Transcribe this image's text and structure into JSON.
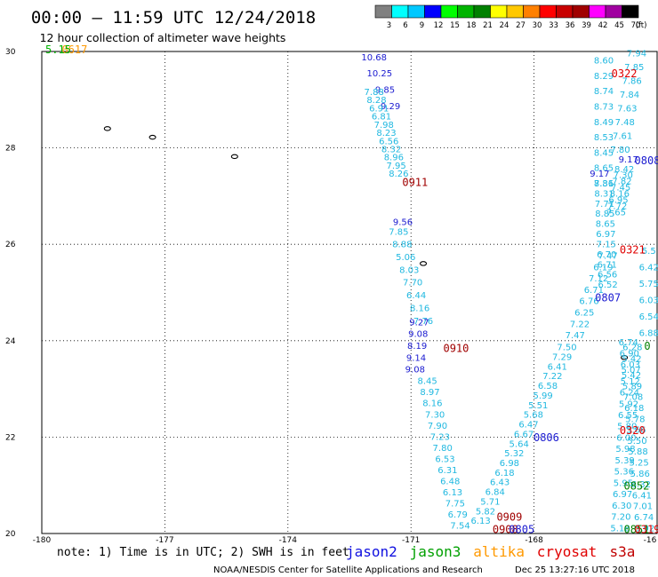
{
  "header": {
    "title": "00:00 – 11:59 UTC 12/24/2018",
    "subtitle": "12 hour collection of altimeter wave heights"
  },
  "legend": {
    "colors": [
      "#808080",
      "#00ffff",
      "#00c8ff",
      "#0000ff",
      "#00ff00",
      "#00b400",
      "#008000",
      "#ffff00",
      "#ffc800",
      "#ff8000",
      "#ff0000",
      "#c80000",
      "#a00000",
      "#ff00ff",
      "#a000a0",
      "#000000"
    ],
    "labels": [
      "3",
      "6",
      "9",
      "12",
      "15",
      "18",
      "21",
      "24",
      "27",
      "30",
      "33",
      "36",
      "39",
      "42",
      "45",
      "70",
      "(ft)"
    ]
  },
  "satellites": [
    {
      "name": "jason2",
      "color": "#1010e0"
    },
    {
      "name": "jason3",
      "color": "#00a000"
    },
    {
      "name": "altika",
      "color": "#ff9900"
    },
    {
      "name": "cryosat",
      "color": "#e00000"
    },
    {
      "name": "s3a",
      "color": "#c00000"
    }
  ],
  "footer": {
    "note": "note: 1) Time is in UTC; 2) SWH is in feet",
    "credit": "NOAA/NESDIS Center for Satellite Applications and Research",
    "generated": "Dec 25 13:27:16 UTC 2018"
  },
  "chart_data": {
    "type": "scatter",
    "xlabel": "",
    "ylabel": "",
    "xlim": [
      -180,
      -165
    ],
    "ylim": [
      20,
      30
    ],
    "grid": true,
    "x_ticks": [
      "-180",
      "-177",
      "-174",
      "-171",
      "-168",
      "-16"
    ],
    "y_ticks": [
      "30",
      "28",
      "26",
      "24",
      "22",
      "20"
    ],
    "tracks": [
      {
        "color": "#1a1ad0",
        "lon_start": -171.9,
        "lat_start": 29.82,
        "lon_end": -171.5,
        "lat_end": 28.8,
        "values": [
          "10.68",
          "10.25",
          "9.85",
          "9.29"
        ]
      },
      {
        "color": "#20b8e0",
        "lon_start": -171.9,
        "lat_start": 29.1,
        "lon_end": -171.3,
        "lat_end": 27.4,
        "values": [
          "7.88",
          "8.28",
          "6.91",
          "6.81",
          "7.98",
          "8.23",
          "6.56",
          "8.32",
          "8.96",
          "7.95",
          "8.26"
        ]
      },
      {
        "color": "#1a1ad0",
        "lon_start": -171.2,
        "lat_start": 26.4,
        "lon_end": -171.2,
        "lat_end": 26.4,
        "values": [
          "9.56"
        ]
      },
      {
        "color": "#20b8e0",
        "lon_start": -171.3,
        "lat_start": 26.2,
        "lon_end": -170.7,
        "lat_end": 24.35,
        "values": [
          "7.85",
          "8.88",
          "5.06",
          "8.03",
          "7.70",
          "6.44",
          "8.16",
          "7.76"
        ]
      },
      {
        "color": "#1a1ad0",
        "lon_start": -170.8,
        "lat_start": 24.32,
        "lon_end": -170.9,
        "lat_end": 23.34,
        "values": [
          "9.27",
          "9.08",
          "8.19",
          "9.14",
          "9.08"
        ]
      },
      {
        "color": "#20b8e0",
        "lon_start": -170.6,
        "lat_start": 23.1,
        "lon_end": -169.8,
        "lat_end": 20.1,
        "values": [
          "8.45",
          "8.97",
          "8.16",
          "7.30",
          "7.90",
          "7.23",
          "7.80",
          "6.53",
          "6.31",
          "6.48",
          "6.13",
          "7.75",
          "6.79",
          "7.54"
        ]
      },
      {
        "color": "#20b8e0",
        "lon_start": -169.3,
        "lat_start": 20.2,
        "lon_end": -167.2,
        "lat_end": 23.8,
        "values": [
          "6.13",
          "5.82",
          "5.71",
          "6.84",
          "6.43",
          "6.18",
          "6.98",
          "5.32",
          "5.64",
          "6.67",
          "6.47",
          "5.68",
          "5.51",
          "5.99",
          "6.58",
          "7.22",
          "6.41",
          "7.29",
          "7.50"
        ]
      },
      {
        "color": "#20b8e0",
        "lon_start": -167.0,
        "lat_start": 24.05,
        "lon_end": -166.2,
        "lat_end": 25.7,
        "values": [
          "7.47",
          "7.22",
          "6.25",
          "6.76",
          "6.71",
          "7.12",
          "6.19",
          "7.47"
        ]
      },
      {
        "color": "#20b8e0",
        "lon_start": -166.3,
        "lat_start": 29.75,
        "lon_end": -166.3,
        "lat_end": 27.2,
        "values": [
          "8.60",
          "8.29",
          "8.74",
          "8.73",
          "8.49",
          "8.53",
          "8.45",
          "8.65",
          "7.81"
        ]
      },
      {
        "color": "#1a1ad0",
        "lon_start": -166.4,
        "lat_start": 27.4,
        "lon_end": -166.4,
        "lat_end": 27.4,
        "values": [
          "9.17"
        ]
      },
      {
        "color": "#20b8e0",
        "lon_start": -166.3,
        "lat_start": 27.2,
        "lon_end": -166.2,
        "lat_end": 25.1,
        "values": [
          "8.36",
          "8.31",
          "7.71",
          "8.85",
          "8.65",
          "6.97",
          "7.15",
          "6.70",
          "6.71",
          "6.56",
          "6.52"
        ]
      },
      {
        "color": "#20b8e0",
        "lon_start": -165.7,
        "lat_start": 23.9,
        "lon_end": -165.3,
        "lat_end": 20.05,
        "values": [
          "6.74",
          "6.90",
          "6.03",
          "5.42",
          "5.89",
          "7.08",
          "6.18",
          "5.78",
          "5.66",
          "5.50",
          "5.88",
          "5.25",
          "5.86",
          "6.32",
          "6.41",
          "7.01",
          "6.74",
          "5.92"
        ]
      },
      {
        "color": "#20b8e0",
        "lon_start": -165.5,
        "lat_start": 29.9,
        "lon_end": -165.9,
        "lat_end": 27.9,
        "values": [
          "7.94",
          "7.85",
          "7.86",
          "7.84",
          "7.63",
          "7.48",
          "7.61",
          "7.80"
        ]
      },
      {
        "color": "#1a1ad0",
        "lon_start": -165.7,
        "lat_start": 27.7,
        "lon_end": -165.7,
        "lat_end": 27.7,
        "values": [
          "9.17"
        ]
      },
      {
        "color": "#20b8e0",
        "lon_start": -165.8,
        "lat_start": 27.5,
        "lon_end": -166.0,
        "lat_end": 26.6,
        "values": [
          "8.42",
          "7.30",
          "7.82",
          "7.45",
          "8.16",
          "6.95",
          "7.72",
          "7.65"
        ]
      },
      {
        "color": "#20b8e0",
        "lon_start": -165.6,
        "lat_start": 23.8,
        "lon_end": -165.9,
        "lat_end": 20.05,
        "values": [
          "6.28",
          "5.42",
          "5.07",
          "5.12",
          "6.24",
          "5.92",
          "6.55",
          "5.80",
          "6.00",
          "5.98",
          "5.39",
          "5.36",
          "5.95",
          "6.97",
          "6.30",
          "7.20",
          "5.18"
        ]
      },
      {
        "color": "#20b8e0",
        "lon_start": -165.2,
        "lat_start": 25.8,
        "lon_end": -165.2,
        "lat_end": 24.1,
        "values": [
          "5.5",
          "6.42",
          "5.75",
          "6.03",
          "6.54",
          "6.88"
        ]
      }
    ],
    "pass_labels": [
      {
        "text": "0617",
        "lon": -179.2,
        "lat": 30.0,
        "color": "#ff9900"
      },
      {
        "text": "5.15",
        "lon": -179.6,
        "lat": 30.0,
        "color": "#00b400"
      },
      {
        "text": "0322",
        "lon": -165.8,
        "lat": 29.5,
        "color": "#e00000"
      },
      {
        "text": "0911",
        "lon": -170.9,
        "lat": 27.25,
        "color": "#a00000"
      },
      {
        "text": "0808",
        "lon": -165.2,
        "lat": 27.7,
        "color": "#1a1ad0"
      },
      {
        "text": "0321",
        "lon": -165.6,
        "lat": 25.85,
        "color": "#e00000"
      },
      {
        "text": "0807",
        "lon": -166.2,
        "lat": 24.85,
        "color": "#1a1ad0"
      },
      {
        "text": "0910",
        "lon": -169.9,
        "lat": 23.8,
        "color": "#a00000"
      },
      {
        "text": "0806",
        "lon": -167.7,
        "lat": 21.95,
        "color": "#1a1ad0"
      },
      {
        "text": "0320",
        "lon": -165.6,
        "lat": 22.1,
        "color": "#e00000"
      },
      {
        "text": "0852",
        "lon": -165.5,
        "lat": 20.95,
        "color": "#008000"
      },
      {
        "text": "0909",
        "lon": -168.6,
        "lat": 20.3,
        "color": "#a00000"
      },
      {
        "text": "0908",
        "lon": -168.7,
        "lat": 20.05,
        "color": "#a00000"
      },
      {
        "text": "0805",
        "lon": -168.3,
        "lat": 20.05,
        "color": "#1a1ad0"
      },
      {
        "text": "0851",
        "lon": -165.5,
        "lat": 20.05,
        "color": "#008000"
      },
      {
        "text": "0319",
        "lon": -164.6,
        "lat": 20.05,
        "color": "#e00000"
      },
      {
        "text": "0",
        "lon": -164.9,
        "lat": 23.85,
        "color": "#008000"
      }
    ],
    "islands": [
      {
        "lon": -178.4,
        "lat": 28.4
      },
      {
        "lon": -177.3,
        "lat": 28.22
      },
      {
        "lon": -175.3,
        "lat": 27.82
      },
      {
        "lon": -170.7,
        "lat": 25.6
      },
      {
        "lon": -165.8,
        "lat": 23.65
      }
    ]
  }
}
